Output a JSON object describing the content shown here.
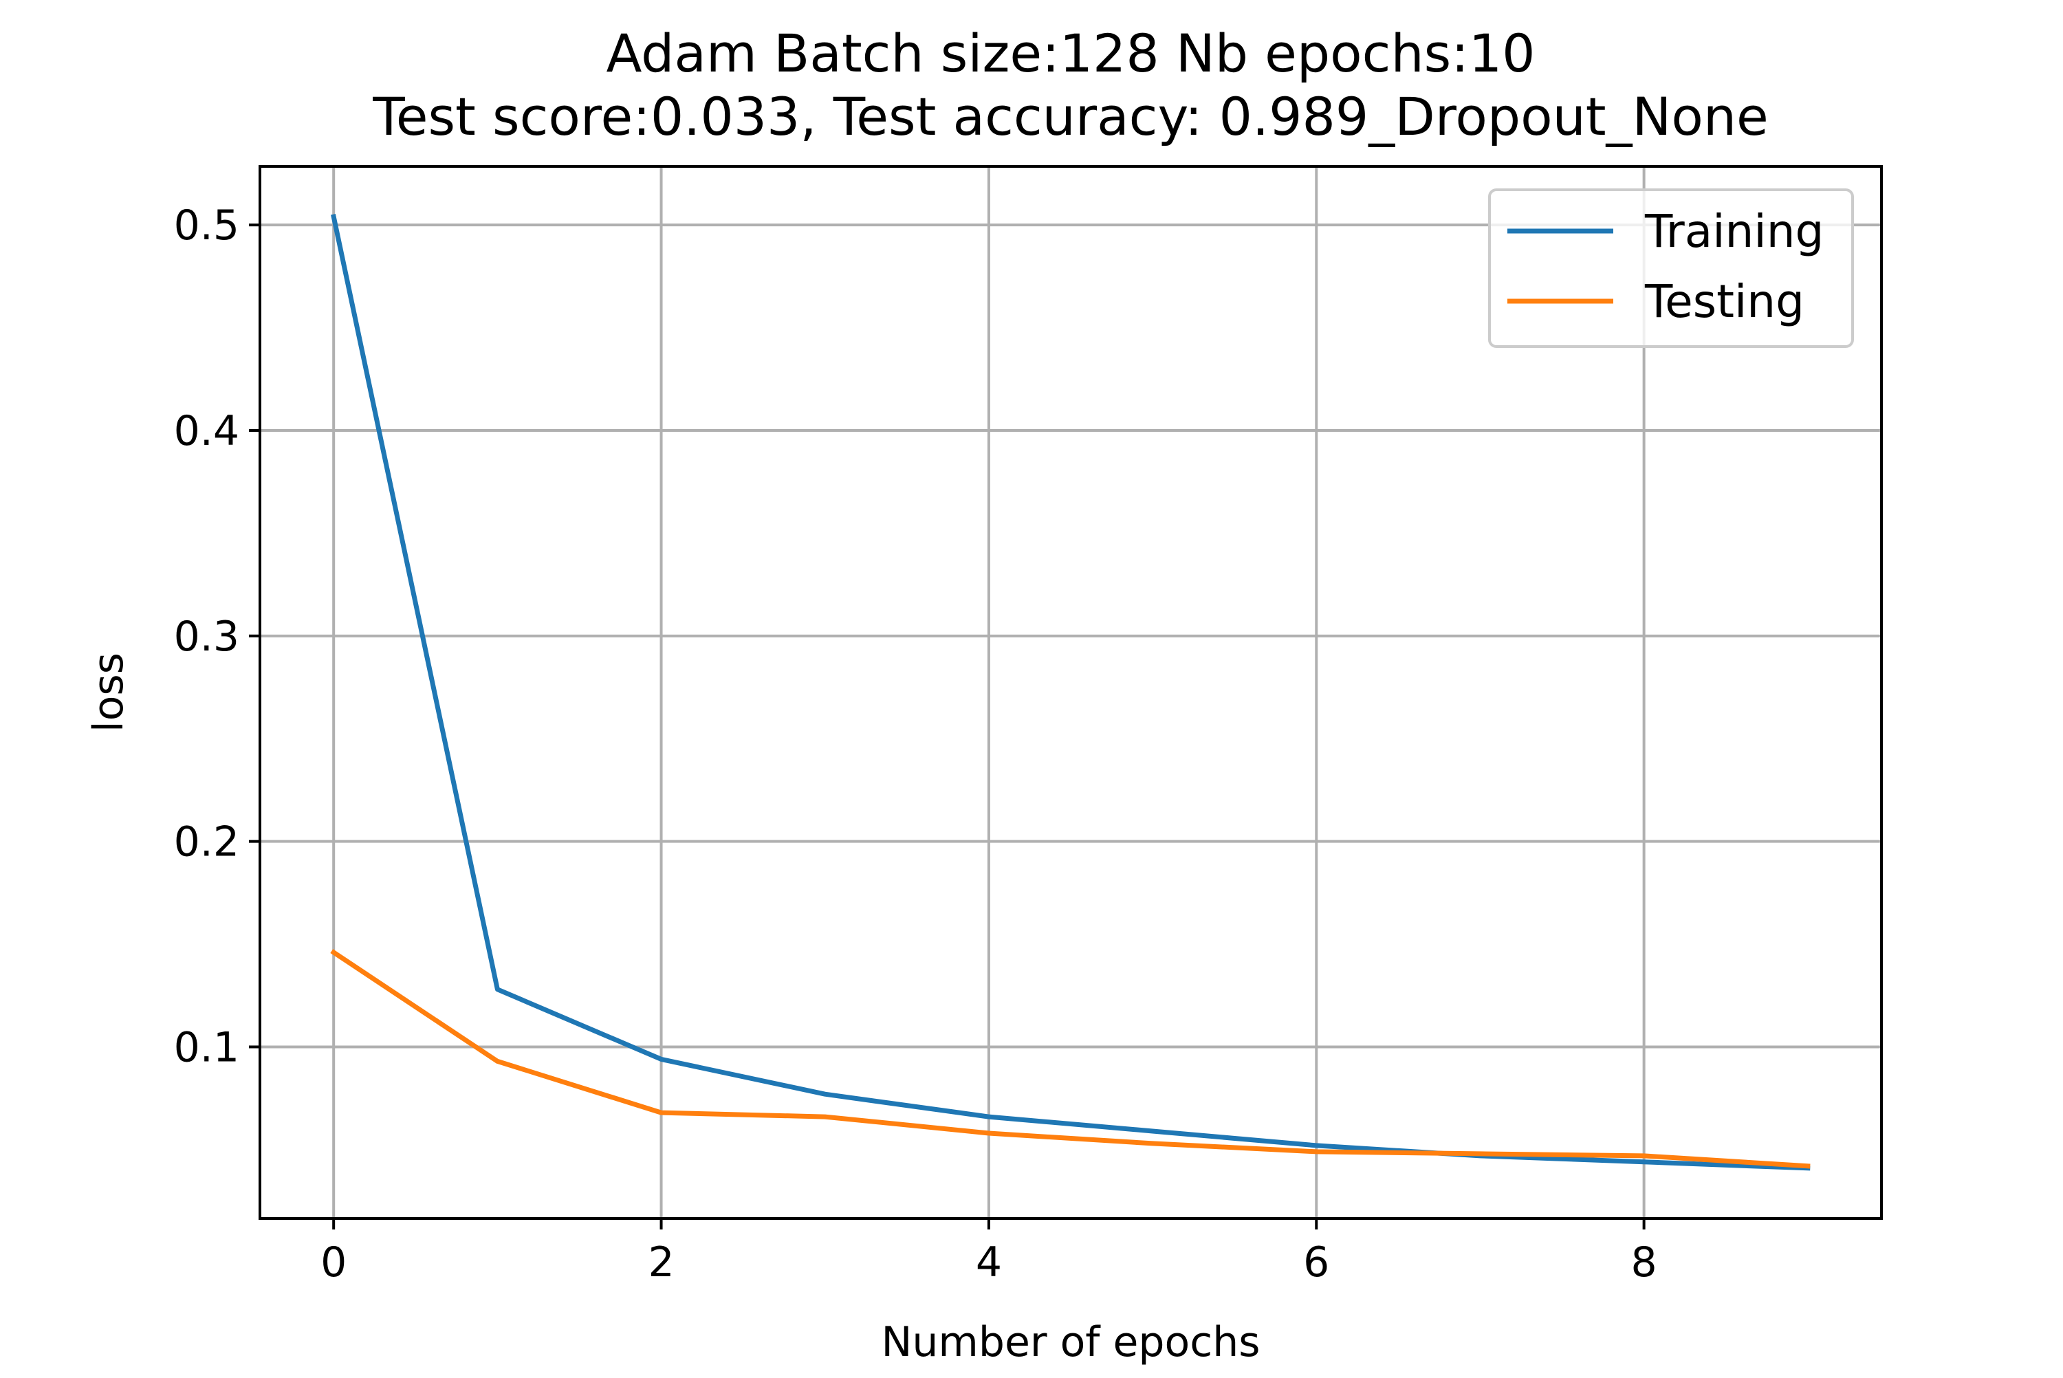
{
  "chart_data": {
    "type": "line",
    "title_lines": [
      "Adam Batch size:128 Nb epochs:10",
      "Test score:0.033, Test accuracy: 0.989_Dropout_None"
    ],
    "xlabel": "Number of epochs",
    "ylabel": "loss",
    "x": [
      0,
      1,
      2,
      3,
      4,
      5,
      6,
      7,
      8,
      9
    ],
    "xlim": [
      -0.45,
      9.45
    ],
    "ylim": [
      0.0165,
      0.5285
    ],
    "xticks": [
      0,
      2,
      4,
      6,
      8
    ],
    "yticks": [
      0.1,
      0.2,
      0.3,
      0.4,
      0.5
    ],
    "xtick_labels": [
      "0",
      "2",
      "4",
      "6",
      "8"
    ],
    "ytick_labels": [
      "0.1",
      "0.2",
      "0.3",
      "0.4",
      "0.5"
    ],
    "grid": true,
    "legend_position": "top-right",
    "series": [
      {
        "name": "Training",
        "color": "#1f77b4",
        "values": [
          0.504,
          0.128,
          0.094,
          0.077,
          0.066,
          0.059,
          0.052,
          0.047,
          0.044,
          0.041
        ]
      },
      {
        "name": "Testing",
        "color": "#ff7f0e",
        "values": [
          0.146,
          0.093,
          0.068,
          0.066,
          0.058,
          0.053,
          0.049,
          0.048,
          0.047,
          0.042
        ]
      }
    ]
  }
}
